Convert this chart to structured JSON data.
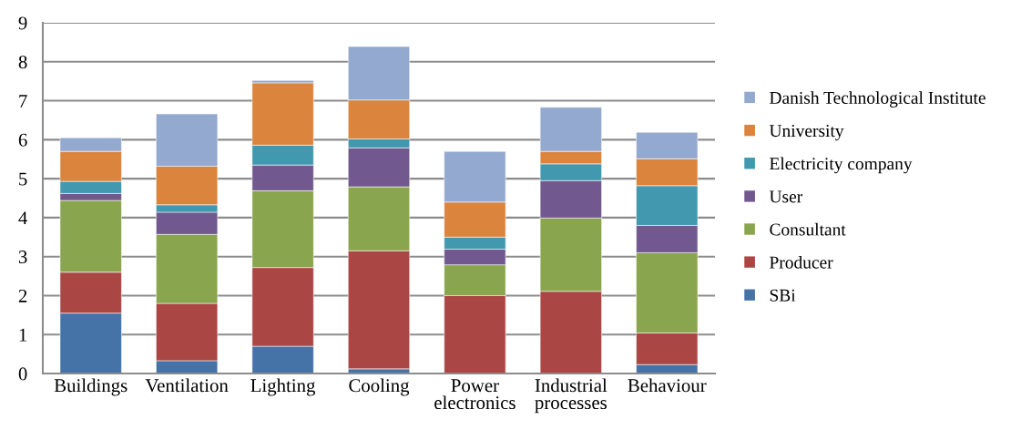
{
  "chart_data": {
    "type": "bar",
    "stacked": true,
    "categories": [
      "Buildings",
      "Ventilation",
      "Lighting",
      "Cooling",
      "Power\nelectronics",
      "Industrial\nprocesses",
      "Behaviour"
    ],
    "series": [
      {
        "name": "SBi",
        "color": "#4572a7",
        "values": [
          1.55,
          0.33,
          0.7,
          0.12,
          0,
          0,
          0.23
        ]
      },
      {
        "name": "Producer",
        "color": "#aa4643",
        "values": [
          1.05,
          1.47,
          2.02,
          3.03,
          2.0,
          2.11,
          0.81
        ]
      },
      {
        "name": "Consultant",
        "color": "#89a54e",
        "values": [
          1.84,
          1.77,
          1.97,
          1.64,
          0.79,
          1.88,
          2.06
        ]
      },
      {
        "name": "User",
        "color": "#71588f",
        "values": [
          0.18,
          0.57,
          0.66,
          1.0,
          0.4,
          0.96,
          0.7
        ]
      },
      {
        "name": "Electricity company",
        "color": "#4198af",
        "values": [
          0.31,
          0.19,
          0.51,
          0.23,
          0.31,
          0.43,
          1.02
        ]
      },
      {
        "name": "University",
        "color": "#db843d",
        "values": [
          0.77,
          0.99,
          1.6,
          1.0,
          0.9,
          0.32,
          0.69
        ]
      },
      {
        "name": "Danish Technological Institute",
        "color": "#93a9cf",
        "values": [
          0.35,
          1.34,
          0.06,
          1.37,
          1.3,
          1.13,
          0.68
        ]
      }
    ],
    "ylim": [
      0,
      9
    ],
    "yticks": [
      0,
      1,
      2,
      3,
      4,
      5,
      6,
      7,
      8,
      9
    ],
    "grid": "y",
    "legend": "right"
  }
}
